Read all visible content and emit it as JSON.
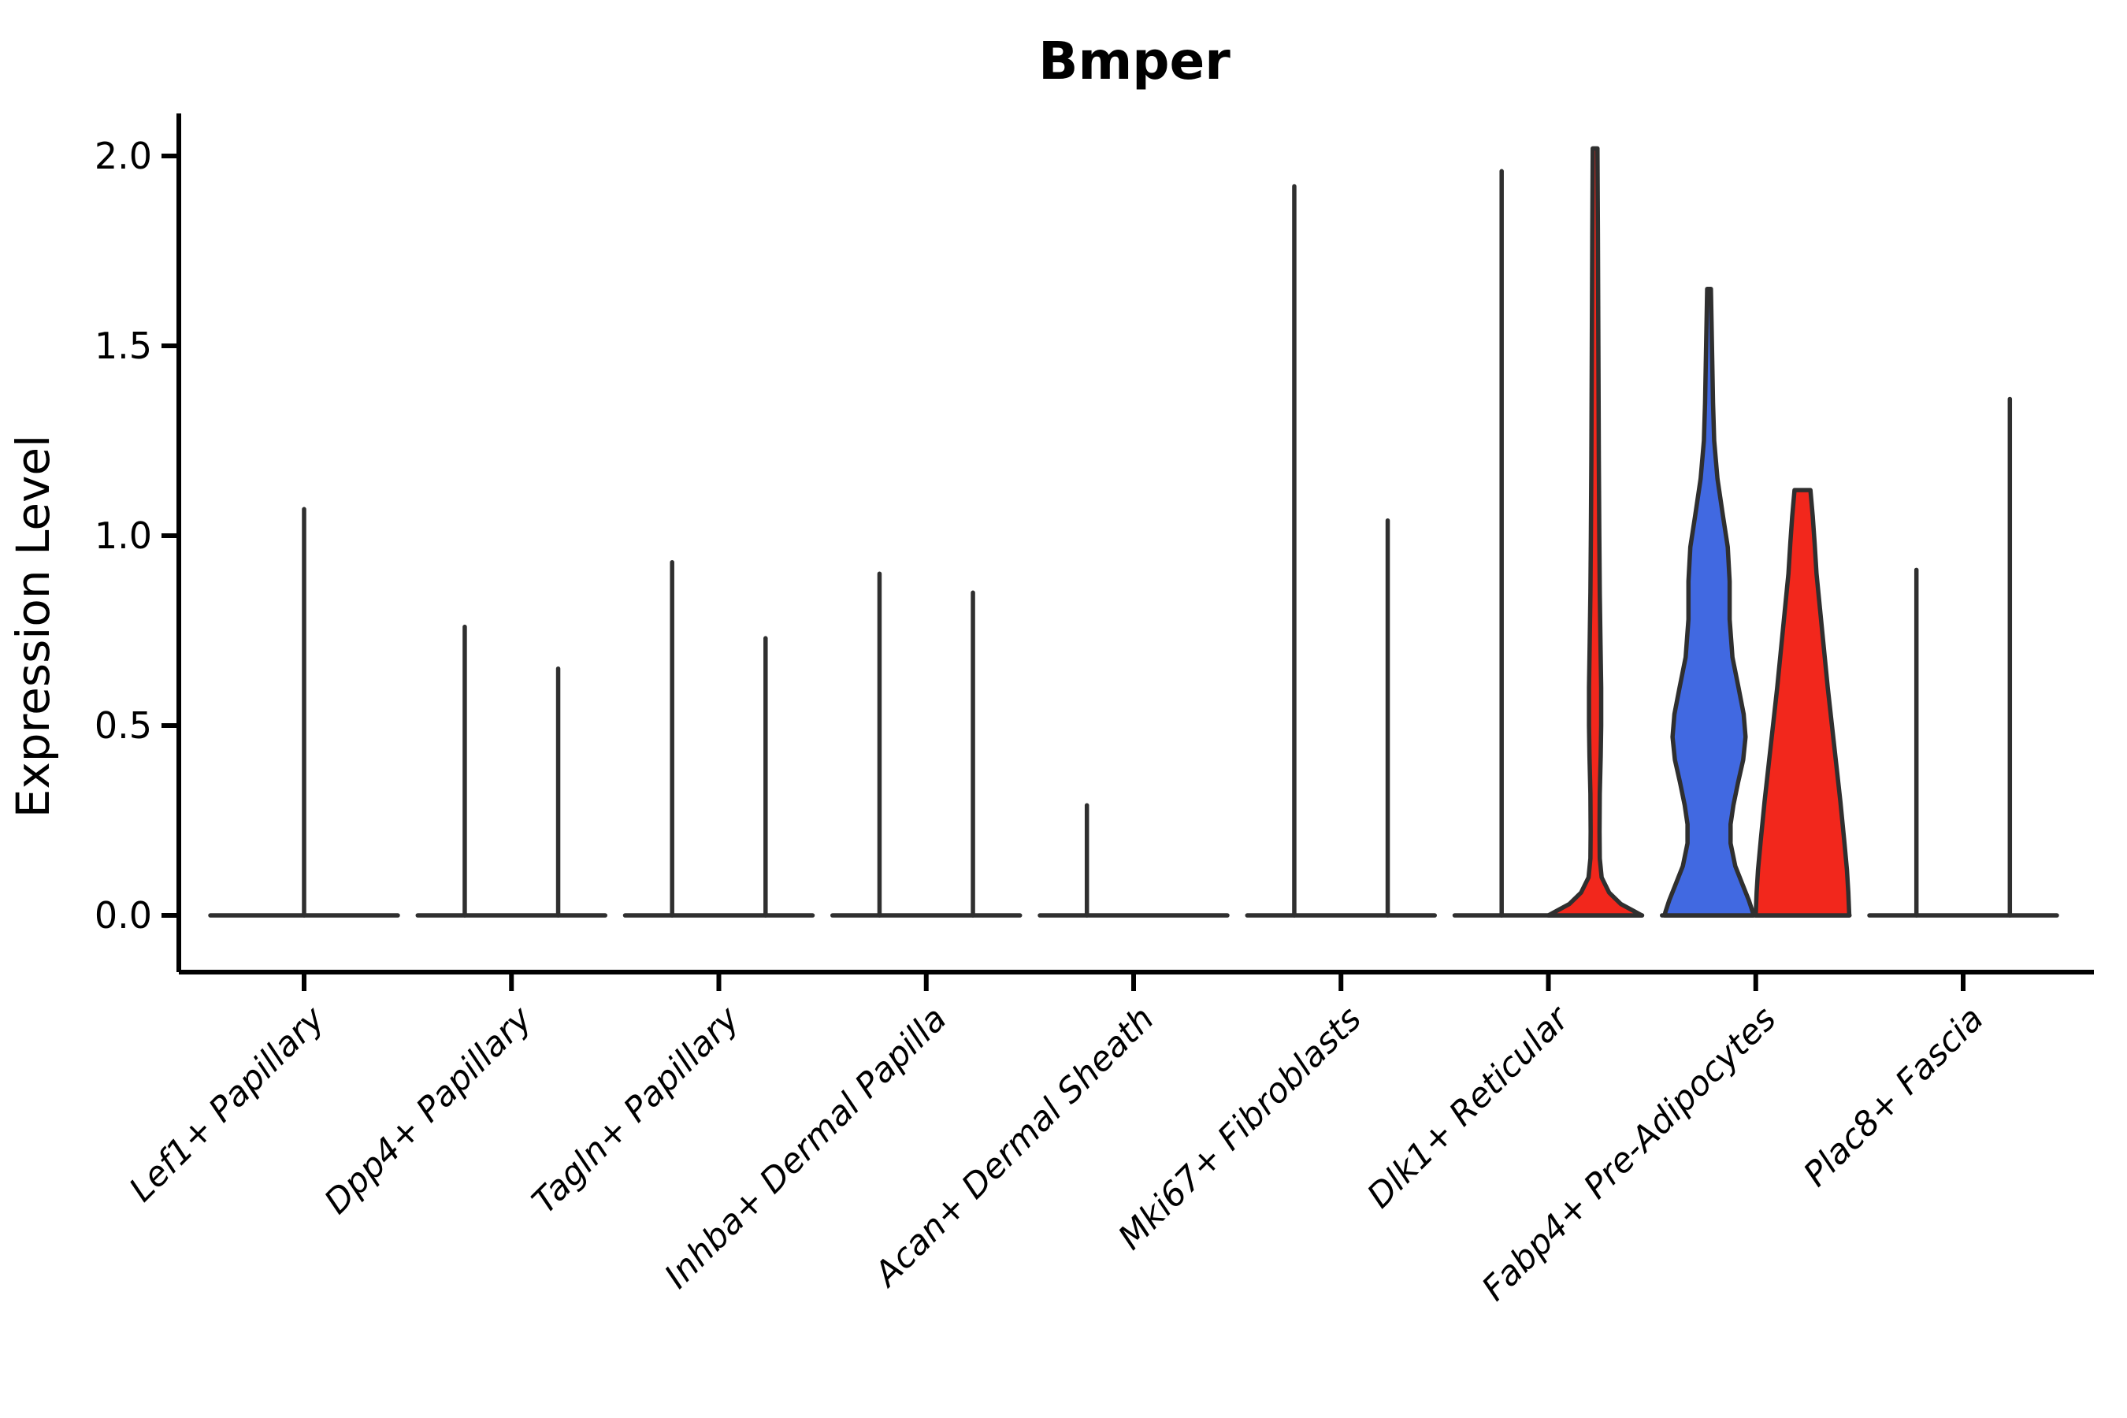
{
  "chart_data": {
    "type": "violin",
    "title": "Bmper",
    "xlabel": "",
    "ylabel": "Expression Level",
    "ylim": [
      0,
      2.05
    ],
    "yticks": [
      0.0,
      0.5,
      1.0,
      1.5,
      2.0
    ],
    "grid": false,
    "legend": "none",
    "x_tick_rotation_deg": 45,
    "x_tick_style": "italic",
    "colors": {
      "blue_fill": "#4169E1",
      "red_fill": "#F2271C",
      "violin_outline": "#2F2F2F",
      "axis_color": "#000000",
      "background": "#FFFFFF"
    },
    "categories": [
      {
        "label": "Lef1+ Papillary",
        "violins": [
          {
            "position": "center",
            "max_expression": 1.07,
            "shape": "spike",
            "fill": "none"
          }
        ]
      },
      {
        "label": "Dpp4+ Papillary",
        "violins": [
          {
            "position": "left",
            "max_expression": 0.76,
            "shape": "spike",
            "fill": "none"
          },
          {
            "position": "right",
            "max_expression": 0.65,
            "shape": "spike",
            "fill": "none"
          }
        ]
      },
      {
        "label": "Tagln+ Papillary",
        "violins": [
          {
            "position": "left",
            "max_expression": 0.93,
            "shape": "spike",
            "fill": "none"
          },
          {
            "position": "right",
            "max_expression": 0.73,
            "shape": "spike",
            "fill": "none"
          }
        ]
      },
      {
        "label": "Inhba+ Dermal Papilla",
        "violins": [
          {
            "position": "left",
            "max_expression": 0.9,
            "shape": "spike",
            "fill": "none"
          },
          {
            "position": "right",
            "max_expression": 0.85,
            "shape": "spike",
            "fill": "none"
          }
        ]
      },
      {
        "label": "Acan+ Dermal Sheath",
        "violins": [
          {
            "position": "left",
            "max_expression": 0.29,
            "shape": "spike",
            "fill": "none"
          },
          {
            "position": "right",
            "max_expression": 0.0,
            "shape": "flat",
            "fill": "none"
          }
        ]
      },
      {
        "label": "Mki67+ Fibroblasts",
        "violins": [
          {
            "position": "left",
            "max_expression": 1.92,
            "shape": "spike",
            "fill": "none"
          },
          {
            "position": "right",
            "max_expression": 1.04,
            "shape": "spike",
            "fill": "none"
          }
        ]
      },
      {
        "label": "Dlk1+ Reticular",
        "violins": [
          {
            "position": "left",
            "max_expression": 1.96,
            "shape": "spike",
            "fill": "none"
          },
          {
            "position": "right",
            "max_expression": 2.02,
            "shape": "density",
            "fill": "red_fill",
            "width_profile": [
              [
                2.02,
                0.05
              ],
              [
                1.8,
                0.06
              ],
              [
                1.5,
                0.07
              ],
              [
                1.2,
                0.08
              ],
              [
                1.0,
                0.09
              ],
              [
                0.85,
                0.1
              ],
              [
                0.72,
                0.115
              ],
              [
                0.6,
                0.13
              ],
              [
                0.5,
                0.13
              ],
              [
                0.42,
                0.12
              ],
              [
                0.32,
                0.1
              ],
              [
                0.22,
                0.095
              ],
              [
                0.15,
                0.1
              ],
              [
                0.1,
                0.14
              ],
              [
                0.06,
                0.3
              ],
              [
                0.03,
                0.55
              ],
              [
                0.01,
                0.85
              ],
              [
                0.0,
                1.0
              ]
            ]
          }
        ]
      },
      {
        "label": "Fabp4+ Pre-Adipocytes",
        "violins": [
          {
            "position": "left",
            "max_expression": 1.65,
            "shape": "density",
            "fill": "blue_fill",
            "width_profile": [
              [
                1.65,
                0.04
              ],
              [
                1.55,
                0.055
              ],
              [
                1.45,
                0.07
              ],
              [
                1.35,
                0.085
              ],
              [
                1.25,
                0.11
              ],
              [
                1.15,
                0.18
              ],
              [
                1.05,
                0.3
              ],
              [
                0.97,
                0.4
              ],
              [
                0.88,
                0.44
              ],
              [
                0.78,
                0.44
              ],
              [
                0.68,
                0.5
              ],
              [
                0.6,
                0.63
              ],
              [
                0.53,
                0.74
              ],
              [
                0.47,
                0.78
              ],
              [
                0.41,
                0.73
              ],
              [
                0.35,
                0.62
              ],
              [
                0.29,
                0.52
              ],
              [
                0.24,
                0.46
              ],
              [
                0.19,
                0.46
              ],
              [
                0.13,
                0.56
              ],
              [
                0.08,
                0.72
              ],
              [
                0.04,
                0.85
              ],
              [
                0.01,
                0.93
              ],
              [
                0.0,
                0.95
              ]
            ]
          },
          {
            "position": "right",
            "max_expression": 1.12,
            "shape": "density",
            "fill": "red_fill",
            "width_profile": [
              [
                1.12,
                0.17
              ],
              [
                1.05,
                0.22
              ],
              [
                0.98,
                0.26
              ],
              [
                0.9,
                0.3
              ],
              [
                0.8,
                0.38
              ],
              [
                0.7,
                0.46
              ],
              [
                0.6,
                0.54
              ],
              [
                0.5,
                0.63
              ],
              [
                0.4,
                0.72
              ],
              [
                0.3,
                0.81
              ],
              [
                0.2,
                0.89
              ],
              [
                0.12,
                0.95
              ],
              [
                0.06,
                0.98
              ],
              [
                0.0,
                1.0
              ]
            ]
          }
        ]
      },
      {
        "label": "Plac8+ Fascia",
        "violins": [
          {
            "position": "left",
            "max_expression": 0.91,
            "shape": "spike",
            "fill": "none"
          },
          {
            "position": "right",
            "max_expression": 1.36,
            "shape": "spike",
            "fill": "none"
          }
        ]
      }
    ]
  }
}
